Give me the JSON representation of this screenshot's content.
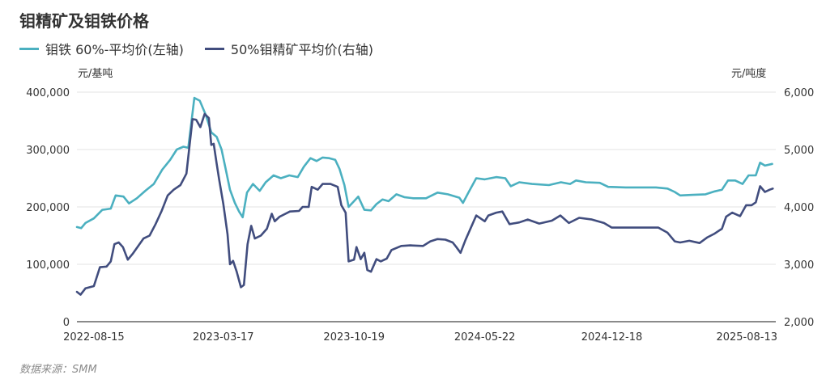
{
  "title": "钼精矿及钼铁价格",
  "source": "数据来源：SMM",
  "colors": {
    "ferro": "#4bb0c0",
    "concentrate": "#414d7e",
    "grid": "#e3e3e3",
    "axis": "#444444"
  },
  "chart_data": {
    "type": "line",
    "left_axis": {
      "unit": "元/基吨",
      "ticks": [
        "400,000",
        "300,000",
        "200,000",
        "100,000",
        "0"
      ],
      "ylim": [
        0,
        400000
      ]
    },
    "right_axis": {
      "unit": "元/吨度",
      "ticks": [
        "6,000",
        "5,000",
        "4,000",
        "3,000",
        "2,000"
      ],
      "ylim": [
        2000,
        6000
      ]
    },
    "x_tick_labels": [
      "2022-08-15",
      "2023-03-17",
      "2023-10-19",
      "2024-05-22",
      "2024-12-18",
      "2025-08-13"
    ],
    "x_range": [
      "2022-07-18",
      "2025-09-15"
    ],
    "grid": true,
    "legend_position": "top-left",
    "series": [
      {
        "name": "钼铁 60%-平均价(左轴)",
        "axis": "left",
        "points": [
          [
            "2022-07-18",
            165000
          ],
          [
            "2022-07-25",
            163000
          ],
          [
            "2022-08-01",
            172000
          ],
          [
            "2022-08-15",
            180000
          ],
          [
            "2022-08-29",
            195000
          ],
          [
            "2022-09-12",
            197000
          ],
          [
            "2022-09-20",
            220000
          ],
          [
            "2022-10-03",
            218000
          ],
          [
            "2022-10-12",
            206000
          ],
          [
            "2022-10-25",
            215000
          ],
          [
            "2022-11-08",
            228000
          ],
          [
            "2022-11-22",
            240000
          ],
          [
            "2022-12-06",
            265000
          ],
          [
            "2022-12-19",
            282000
          ],
          [
            "2022-12-30",
            300000
          ],
          [
            "2023-01-10",
            305000
          ],
          [
            "2023-01-18",
            303000
          ],
          [
            "2023-01-28",
            390000
          ],
          [
            "2023-02-06",
            385000
          ],
          [
            "2023-02-16",
            360000
          ],
          [
            "2023-02-25",
            330000
          ],
          [
            "2023-03-06",
            322000
          ],
          [
            "2023-03-14",
            300000
          ],
          [
            "2023-03-20",
            270000
          ],
          [
            "2023-03-28",
            230000
          ],
          [
            "2023-04-05",
            207000
          ],
          [
            "2023-04-12",
            192000
          ],
          [
            "2023-04-18",
            182000
          ],
          [
            "2023-04-25",
            225000
          ],
          [
            "2023-05-05",
            240000
          ],
          [
            "2023-05-16",
            228000
          ],
          [
            "2023-05-26",
            243000
          ],
          [
            "2023-06-08",
            255000
          ],
          [
            "2023-06-20",
            250000
          ],
          [
            "2023-07-04",
            255000
          ],
          [
            "2023-07-18",
            252000
          ],
          [
            "2023-07-28",
            270000
          ],
          [
            "2023-08-08",
            285000
          ],
          [
            "2023-08-18",
            280000
          ],
          [
            "2023-08-28",
            286000
          ],
          [
            "2023-09-08",
            285000
          ],
          [
            "2023-09-18",
            282000
          ],
          [
            "2023-09-25",
            266000
          ],
          [
            "2023-10-03",
            238000
          ],
          [
            "2023-10-10",
            200000
          ],
          [
            "2023-10-19",
            210000
          ],
          [
            "2023-10-26",
            218000
          ],
          [
            "2023-11-05",
            195000
          ],
          [
            "2023-11-16",
            194000
          ],
          [
            "2023-11-25",
            205000
          ],
          [
            "2023-12-05",
            213000
          ],
          [
            "2023-12-15",
            210000
          ],
          [
            "2023-12-28",
            222000
          ],
          [
            "2024-01-10",
            217000
          ],
          [
            "2024-01-25",
            215000
          ],
          [
            "2024-02-15",
            215000
          ],
          [
            "2024-03-05",
            225000
          ],
          [
            "2024-03-22",
            222000
          ],
          [
            "2024-04-10",
            216000
          ],
          [
            "2024-04-16",
            207000
          ],
          [
            "2024-04-25",
            225000
          ],
          [
            "2024-05-08",
            250000
          ],
          [
            "2024-05-22",
            248000
          ],
          [
            "2024-06-10",
            252000
          ],
          [
            "2024-06-25",
            250000
          ],
          [
            "2024-07-04",
            236000
          ],
          [
            "2024-07-18",
            243000
          ],
          [
            "2024-08-08",
            240000
          ],
          [
            "2024-09-05",
            238000
          ],
          [
            "2024-09-25",
            243000
          ],
          [
            "2024-10-10",
            240000
          ],
          [
            "2024-10-20",
            246000
          ],
          [
            "2024-11-05",
            243000
          ],
          [
            "2024-11-28",
            242000
          ],
          [
            "2024-12-12",
            235000
          ],
          [
            "2025-01-10",
            234000
          ],
          [
            "2025-02-05",
            234000
          ],
          [
            "2025-03-01",
            234000
          ],
          [
            "2025-03-20",
            232000
          ],
          [
            "2025-04-01",
            226000
          ],
          [
            "2025-04-10",
            220000
          ],
          [
            "2025-05-01",
            221000
          ],
          [
            "2025-05-22",
            222000
          ],
          [
            "2025-06-06",
            227000
          ],
          [
            "2025-06-18",
            230000
          ],
          [
            "2025-06-28",
            246000
          ],
          [
            "2025-07-10",
            246000
          ],
          [
            "2025-07-22",
            240000
          ],
          [
            "2025-08-01",
            255000
          ],
          [
            "2025-08-13",
            255000
          ],
          [
            "2025-08-20",
            277000
          ],
          [
            "2025-08-28",
            272000
          ],
          [
            "2025-09-09",
            275000
          ]
        ]
      },
      {
        "name": "50%钼精矿平均价(右轴)",
        "axis": "right",
        "points": [
          [
            "2022-07-18",
            2520
          ],
          [
            "2022-07-24",
            2470
          ],
          [
            "2022-08-01",
            2580
          ],
          [
            "2022-08-15",
            2620
          ],
          [
            "2022-08-25",
            2950
          ],
          [
            "2022-09-05",
            2960
          ],
          [
            "2022-09-12",
            3050
          ],
          [
            "2022-09-18",
            3350
          ],
          [
            "2022-09-25",
            3380
          ],
          [
            "2022-10-02",
            3300
          ],
          [
            "2022-10-10",
            3080
          ],
          [
            "2022-10-18",
            3180
          ],
          [
            "2022-10-28",
            3330
          ],
          [
            "2022-11-05",
            3450
          ],
          [
            "2022-11-15",
            3500
          ],
          [
            "2022-11-25",
            3700
          ],
          [
            "2022-12-05",
            3930
          ],
          [
            "2022-12-15",
            4200
          ],
          [
            "2022-12-25",
            4300
          ],
          [
            "2023-01-05",
            4380
          ],
          [
            "2023-01-15",
            4580
          ],
          [
            "2023-01-25",
            5530
          ],
          [
            "2023-01-31",
            5520
          ],
          [
            "2023-02-07",
            5390
          ],
          [
            "2023-02-14",
            5620
          ],
          [
            "2023-02-21",
            5550
          ],
          [
            "2023-02-25",
            5080
          ],
          [
            "2023-03-01",
            5100
          ],
          [
            "2023-03-06",
            4750
          ],
          [
            "2023-03-10",
            4480
          ],
          [
            "2023-03-17",
            4050
          ],
          [
            "2023-03-24",
            3520
          ],
          [
            "2023-03-28",
            3000
          ],
          [
            "2023-04-02",
            3060
          ],
          [
            "2023-04-08",
            2870
          ],
          [
            "2023-04-15",
            2600
          ],
          [
            "2023-04-20",
            2640
          ],
          [
            "2023-04-26",
            3350
          ],
          [
            "2023-05-02",
            3670
          ],
          [
            "2023-05-08",
            3450
          ],
          [
            "2023-05-18",
            3500
          ],
          [
            "2023-05-28",
            3620
          ],
          [
            "2023-06-05",
            3880
          ],
          [
            "2023-06-10",
            3750
          ],
          [
            "2023-06-18",
            3830
          ],
          [
            "2023-07-05",
            3920
          ],
          [
            "2023-07-20",
            3930
          ],
          [
            "2023-07-26",
            4000
          ],
          [
            "2023-08-05",
            4000
          ],
          [
            "2023-08-10",
            4350
          ],
          [
            "2023-08-20",
            4300
          ],
          [
            "2023-08-28",
            4400
          ],
          [
            "2023-09-10",
            4400
          ],
          [
            "2023-09-22",
            4350
          ],
          [
            "2023-09-28",
            4030
          ],
          [
            "2023-10-05",
            3900
          ],
          [
            "2023-10-10",
            3050
          ],
          [
            "2023-10-19",
            3080
          ],
          [
            "2023-10-23",
            3300
          ],
          [
            "2023-10-30",
            3090
          ],
          [
            "2023-11-05",
            3200
          ],
          [
            "2023-11-10",
            2900
          ],
          [
            "2023-11-16",
            2870
          ],
          [
            "2023-11-25",
            3090
          ],
          [
            "2023-12-02",
            3050
          ],
          [
            "2023-12-12",
            3100
          ],
          [
            "2023-12-20",
            3250
          ],
          [
            "2024-01-05",
            3320
          ],
          [
            "2024-01-20",
            3330
          ],
          [
            "2024-02-10",
            3320
          ],
          [
            "2024-02-22",
            3400
          ],
          [
            "2024-03-05",
            3440
          ],
          [
            "2024-03-18",
            3430
          ],
          [
            "2024-03-30",
            3380
          ],
          [
            "2024-04-05",
            3300
          ],
          [
            "2024-04-12",
            3200
          ],
          [
            "2024-04-20",
            3420
          ],
          [
            "2024-05-08",
            3850
          ],
          [
            "2024-05-22",
            3750
          ],
          [
            "2024-05-28",
            3850
          ],
          [
            "2024-06-10",
            3900
          ],
          [
            "2024-06-20",
            3920
          ],
          [
            "2024-07-02",
            3700
          ],
          [
            "2024-07-18",
            3730
          ],
          [
            "2024-08-01",
            3780
          ],
          [
            "2024-08-20",
            3710
          ],
          [
            "2024-09-10",
            3760
          ],
          [
            "2024-09-24",
            3850
          ],
          [
            "2024-10-08",
            3720
          ],
          [
            "2024-10-25",
            3810
          ],
          [
            "2024-11-15",
            3780
          ],
          [
            "2024-12-05",
            3720
          ],
          [
            "2024-12-18",
            3640
          ],
          [
            "2025-01-15",
            3640
          ],
          [
            "2025-02-10",
            3640
          ],
          [
            "2025-03-05",
            3640
          ],
          [
            "2025-03-20",
            3550
          ],
          [
            "2025-04-01",
            3400
          ],
          [
            "2025-04-10",
            3380
          ],
          [
            "2025-04-25",
            3410
          ],
          [
            "2025-05-12",
            3370
          ],
          [
            "2025-05-25",
            3470
          ],
          [
            "2025-06-05",
            3530
          ],
          [
            "2025-06-18",
            3620
          ],
          [
            "2025-06-25",
            3830
          ],
          [
            "2025-07-05",
            3900
          ],
          [
            "2025-07-18",
            3840
          ],
          [
            "2025-07-28",
            4030
          ],
          [
            "2025-08-06",
            4030
          ],
          [
            "2025-08-13",
            4080
          ],
          [
            "2025-08-20",
            4360
          ],
          [
            "2025-08-28",
            4260
          ],
          [
            "2025-09-05",
            4300
          ],
          [
            "2025-09-10",
            4320
          ]
        ]
      }
    ]
  }
}
